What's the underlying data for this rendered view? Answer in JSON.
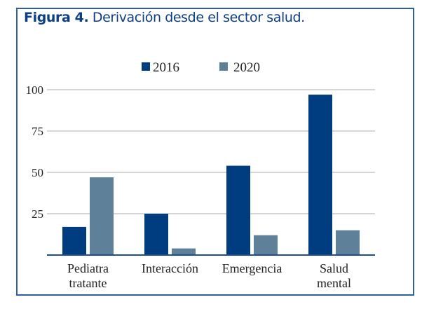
{
  "figure": {
    "label": "Figura 4.",
    "caption": "Derivación desde el sector salud."
  },
  "colors": {
    "series_2016": "#003c80",
    "series_2020": "#5e8098",
    "frame": "#2f5f9e",
    "title": "#0b3f86",
    "grid": "#c8c8c8",
    "axis": "#1f4f8f",
    "text": "#222222"
  },
  "chart_data": {
    "type": "bar",
    "title": "Derivación desde el sector salud.",
    "xlabel": "",
    "ylabel": "",
    "categories": [
      [
        "Pediatra",
        "tratante"
      ],
      [
        "Interacción"
      ],
      [
        "Emergencia"
      ],
      [
        "Salud",
        "mental"
      ]
    ],
    "series": [
      {
        "name": "2016",
        "values": [
          17,
          25,
          54,
          97
        ]
      },
      {
        "name": "2020",
        "values": [
          47,
          4,
          12,
          15
        ]
      }
    ],
    "ylim": [
      0,
      100
    ],
    "yticks": [
      25,
      50,
      75,
      100
    ],
    "grid": true,
    "legend": "top-center"
  }
}
